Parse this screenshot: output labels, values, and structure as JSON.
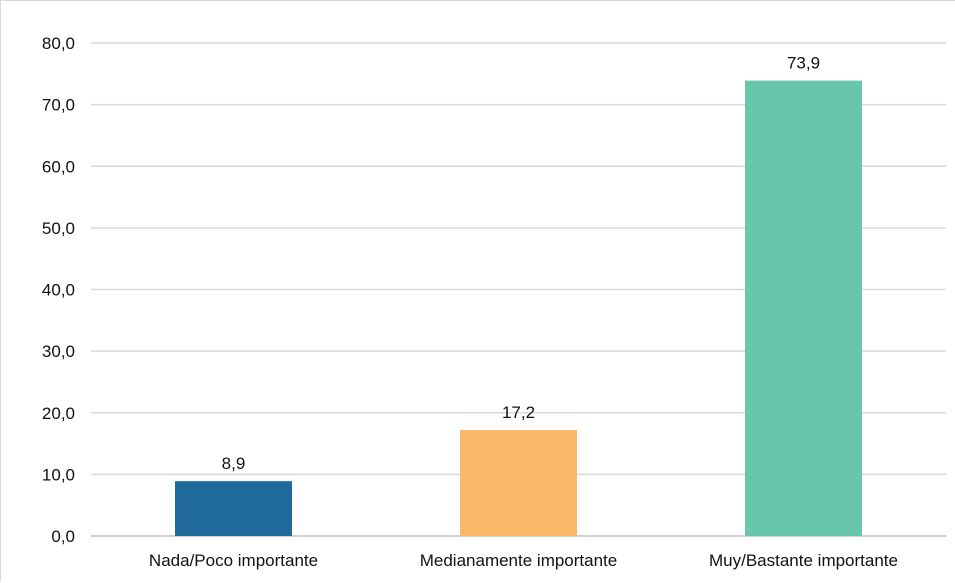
{
  "chart_data": {
    "type": "bar",
    "title": "",
    "xlabel": "",
    "ylabel": "",
    "categories": [
      "Nada/Poco importante",
      "Medianamente importante",
      "Muy/Bastante importante"
    ],
    "values": [
      8.9,
      17.2,
      73.9
    ],
    "value_labels": [
      "8,9",
      "17,2",
      "73,9"
    ],
    "colors": [
      "#1f6a9a",
      "#fbb86b",
      "#68c6aa"
    ],
    "ylim": [
      0,
      80
    ],
    "yticks": [
      0,
      10,
      20,
      30,
      40,
      50,
      60,
      70,
      80
    ],
    "ytick_labels": [
      "0,0",
      "10,0",
      "20,0",
      "30,0",
      "40,0",
      "50,0",
      "60,0",
      "70,0",
      "80,0"
    ],
    "grid": true,
    "legend": "none"
  }
}
